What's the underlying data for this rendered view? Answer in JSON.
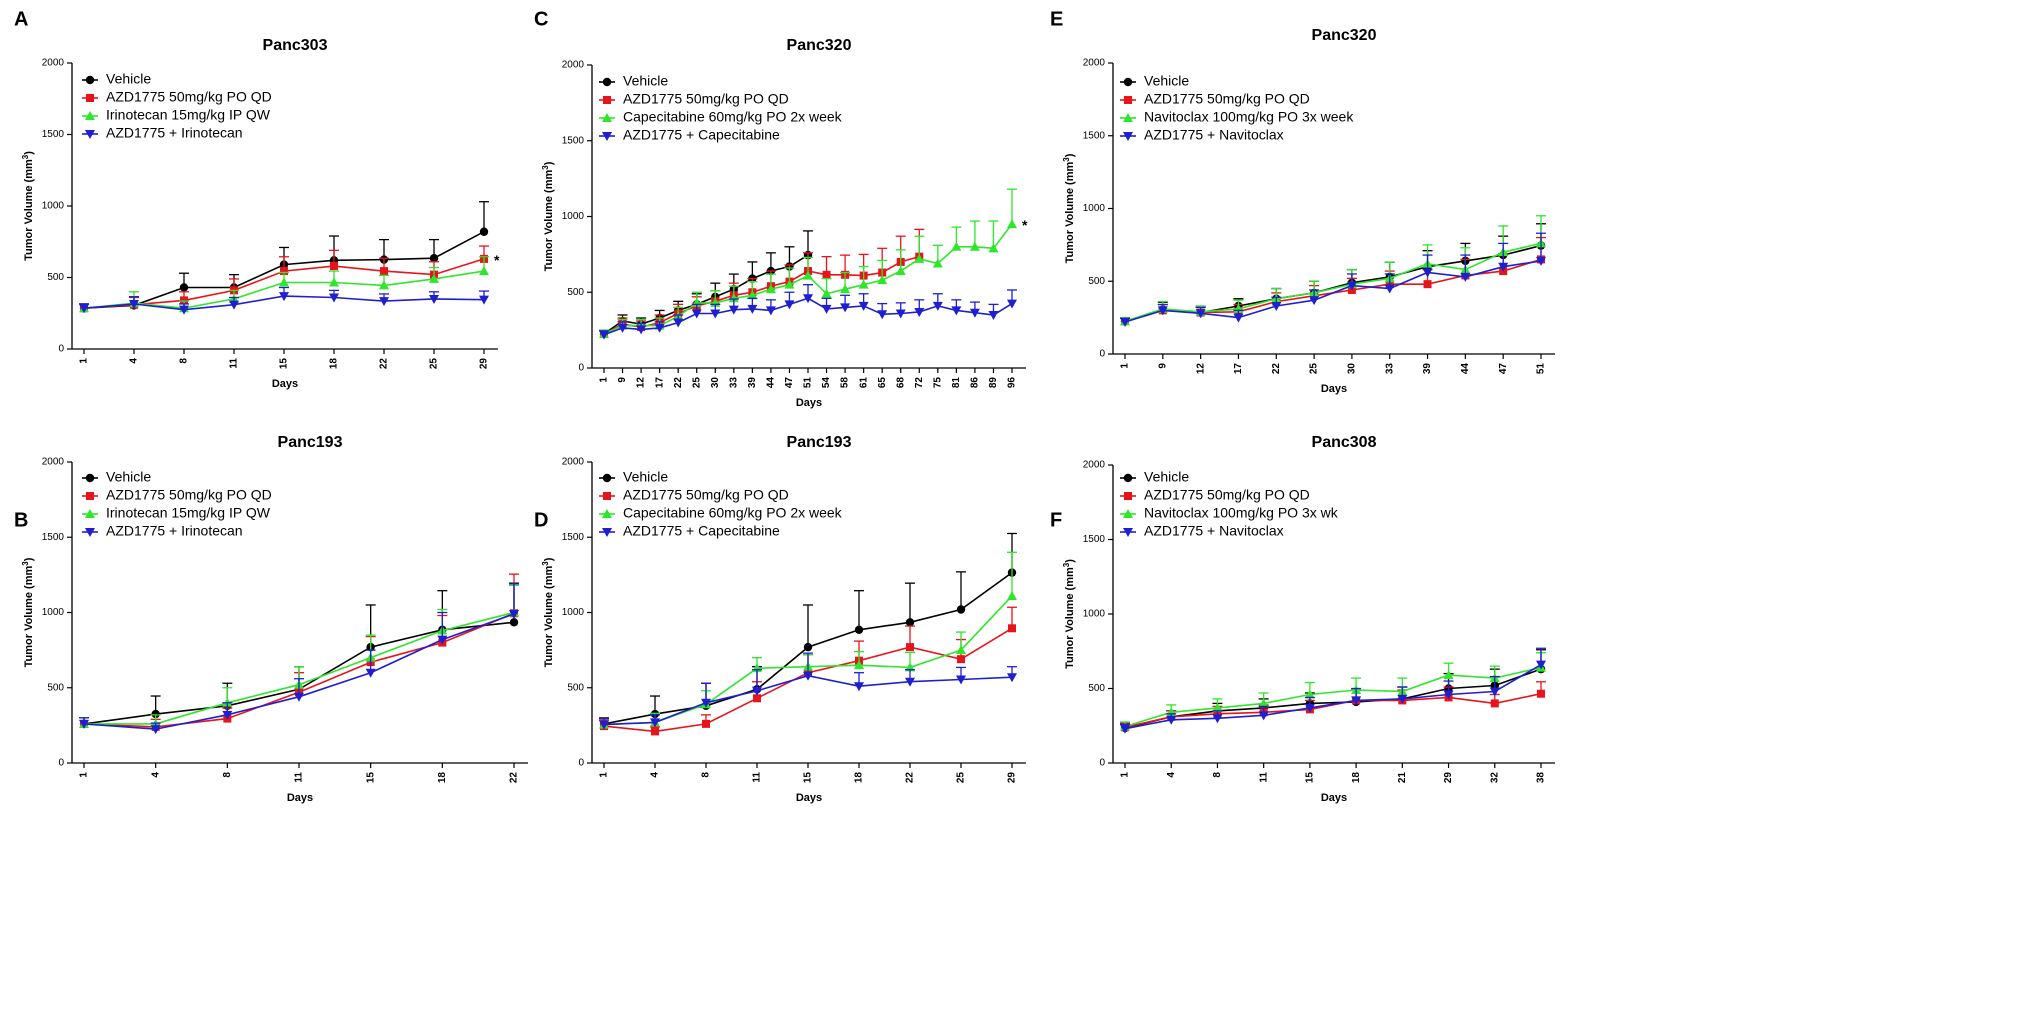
{
  "figure": {
    "colors": {
      "vehicle": "#000000",
      "azd": "#e8141b",
      "combo_drug": "#2ee62a",
      "combo": "#1f1fd0",
      "axis": "#000000"
    }
  },
  "chart_data": [
    {
      "panel_label": "A",
      "type": "line",
      "title": "Panc303",
      "xlabel": "Days",
      "ylabel": "Tumor Volume (mm",
      "ylabel_sup": "3",
      "ylabel_end": ")",
      "ylim": [
        0,
        2000
      ],
      "yticks": [
        "0",
        "500",
        "1000",
        "1500",
        "2000"
      ],
      "categories": [
        "1",
        "4",
        "8",
        "11",
        "15",
        "18",
        "22",
        "25",
        "29"
      ],
      "annotation": "*",
      "series": [
        {
          "name": "Vehicle",
          "color_key": "vehicle",
          "marker": "circle",
          "values": [
            285,
            305,
            430,
            430,
            590,
            620,
            625,
            635,
            820
          ],
          "errors": [
            30,
            60,
            100,
            90,
            120,
            170,
            140,
            130,
            210
          ]
        },
        {
          "name": "AZD1775 50mg/kg PO QD",
          "color_key": "azd",
          "marker": "square",
          "values": [
            285,
            310,
            340,
            410,
            545,
            580,
            545,
            520,
            630
          ],
          "errors": [
            30,
            50,
            60,
            80,
            100,
            110,
            90,
            90,
            90
          ]
        },
        {
          "name": "Irinotecan 15mg/kg IP QW",
          "color_key": "combo_drug",
          "marker": "triangle-up",
          "values": [
            285,
            320,
            285,
            350,
            465,
            465,
            445,
            490,
            545
          ],
          "errors": [
            30,
            80,
            50,
            60,
            70,
            80,
            70,
            80,
            100
          ]
        },
        {
          "name": "AZD1775 + Irinotecan",
          "color_key": "combo",
          "marker": "triangle-down",
          "values": [
            285,
            315,
            275,
            310,
            370,
            360,
            335,
            350,
            345
          ],
          "errors": [
            30,
            50,
            40,
            50,
            60,
            50,
            50,
            50,
            60
          ]
        }
      ]
    },
    {
      "panel_label": "C",
      "type": "line",
      "title": "Panc320",
      "xlabel": "Days",
      "ylabel": "Tumor Volume (mm",
      "ylabel_sup": "3",
      "ylabel_end": ")",
      "ylim": [
        0,
        2000
      ],
      "yticks": [
        "0",
        "500",
        "1000",
        "1500",
        "2000"
      ],
      "categories": [
        "1",
        "9",
        "12",
        "17",
        "22",
        "25",
        "30",
        "33",
        "39",
        "44",
        "47",
        "51",
        "54",
        "58",
        "61",
        "65",
        "68",
        "72",
        "75",
        "81",
        "86",
        "89",
        "96"
      ],
      "annotation": "*",
      "series": [
        {
          "name": "Vehicle",
          "color_key": "vehicle",
          "marker": "circle",
          "values": [
            225,
            310,
            290,
            330,
            380,
            420,
            470,
            520,
            590,
            640,
            670,
            745,
            null,
            null,
            null,
            null,
            null,
            null,
            null,
            null,
            null,
            null,
            null
          ],
          "errors": [
            25,
            40,
            40,
            50,
            60,
            70,
            90,
            100,
            110,
            120,
            130,
            160,
            0,
            0,
            0,
            0,
            0,
            0,
            0,
            0,
            0,
            0,
            0
          ]
        },
        {
          "name": "AZD1775 50mg/kg PO QD",
          "color_key": "azd",
          "marker": "square",
          "values": [
            225,
            290,
            270,
            300,
            360,
            410,
            440,
            480,
            500,
            540,
            570,
            640,
            615,
            615,
            610,
            630,
            700,
            735,
            null,
            null,
            null,
            null,
            null
          ],
          "errors": [
            25,
            40,
            40,
            50,
            60,
            60,
            70,
            80,
            90,
            100,
            110,
            120,
            120,
            130,
            140,
            160,
            170,
            180,
            0,
            0,
            0,
            0,
            0
          ]
        },
        {
          "name": "Capecitabine 60mg/kg PO 2x week",
          "color_key": "combo_drug",
          "marker": "triangle-up",
          "values": [
            225,
            280,
            280,
            280,
            340,
            430,
            430,
            460,
            480,
            520,
            550,
            610,
            490,
            520,
            550,
            580,
            640,
            720,
            690,
            800,
            800,
            790,
            950
          ],
          "errors": [
            25,
            40,
            40,
            50,
            60,
            70,
            80,
            80,
            90,
            100,
            110,
            120,
            100,
            110,
            120,
            130,
            140,
            150,
            120,
            130,
            170,
            180,
            230
          ]
        },
        {
          "name": "AZD1775 + Capecitabine",
          "color_key": "combo",
          "marker": "triangle-down",
          "values": [
            220,
            265,
            255,
            265,
            300,
            360,
            360,
            385,
            390,
            380,
            420,
            460,
            390,
            400,
            410,
            355,
            360,
            370,
            410,
            380,
            365,
            350,
            425
          ],
          "errors": [
            25,
            40,
            40,
            40,
            50,
            60,
            60,
            70,
            70,
            70,
            80,
            90,
            70,
            80,
            80,
            70,
            70,
            80,
            80,
            70,
            70,
            70,
            90
          ]
        }
      ]
    },
    {
      "panel_label": "E",
      "type": "line",
      "title": "Panc320",
      "xlabel": "Days",
      "ylabel": "Tumor Volume (mm",
      "ylabel_sup": "3",
      "ylabel_end": ")",
      "ylim": [
        0,
        2000
      ],
      "yticks": [
        "0",
        "500",
        "1000",
        "1500",
        "2000"
      ],
      "categories": [
        "1",
        "9",
        "12",
        "17",
        "22",
        "25",
        "30",
        "33",
        "39",
        "44",
        "47",
        "51"
      ],
      "annotation": "",
      "series": [
        {
          "name": "Vehicle",
          "color_key": "vehicle",
          "marker": "circle",
          "values": [
            225,
            305,
            285,
            330,
            380,
            420,
            490,
            530,
            600,
            640,
            680,
            745
          ],
          "errors": [
            25,
            50,
            40,
            50,
            70,
            80,
            90,
            100,
            110,
            120,
            130,
            150
          ]
        },
        {
          "name": "AZD1775 50mg/kg PO QD",
          "color_key": "azd",
          "marker": "square",
          "values": [
            225,
            300,
            285,
            290,
            360,
            400,
            440,
            480,
            480,
            540,
            570,
            650
          ],
          "errors": [
            25,
            40,
            40,
            50,
            60,
            70,
            80,
            90,
            100,
            110,
            120,
            150
          ]
        },
        {
          "name": "Navitoclax 100mg/kg PO 3x week",
          "color_key": "combo_drug",
          "marker": "triangle-up",
          "values": [
            225,
            310,
            290,
            310,
            380,
            420,
            480,
            520,
            620,
            580,
            700,
            760
          ],
          "errors": [
            25,
            50,
            40,
            60,
            70,
            80,
            100,
            110,
            130,
            150,
            180,
            190
          ]
        },
        {
          "name": "AZD1775 + Navitoclax",
          "color_key": "combo",
          "marker": "triangle-down",
          "values": [
            220,
            300,
            280,
            250,
            330,
            370,
            470,
            450,
            560,
            530,
            600,
            640
          ],
          "errors": [
            25,
            40,
            40,
            50,
            60,
            70,
            80,
            100,
            120,
            150,
            160,
            190
          ]
        }
      ]
    },
    {
      "panel_label": "B",
      "type": "line",
      "title": "Panc193",
      "xlabel": "Days",
      "ylabel": "Tumor Volume (mm",
      "ylabel_sup": "3",
      "ylabel_end": ")",
      "ylim": [
        0,
        2000
      ],
      "yticks": [
        "0",
        "500",
        "1000",
        "1500",
        "2000"
      ],
      "categories": [
        "1",
        "4",
        "8",
        "11",
        "15",
        "18",
        "22"
      ],
      "annotation": "",
      "series": [
        {
          "name": "Vehicle",
          "color_key": "vehicle",
          "marker": "circle",
          "values": [
            260,
            325,
            380,
            490,
            770,
            885,
            935
          ],
          "errors": [
            40,
            120,
            150,
            150,
            280,
            260,
            260
          ]
        },
        {
          "name": "AZD1775 50mg/kg PO QD",
          "color_key": "azd",
          "marker": "square",
          "values": [
            260,
            240,
            295,
            470,
            670,
            800,
            995
          ],
          "errors": [
            40,
            50,
            70,
            130,
            170,
            180,
            260
          ]
        },
        {
          "name": "Irinotecan 15mg/kg IP QW",
          "color_key": "combo_drug",
          "marker": "triangle-up",
          "values": [
            260,
            260,
            400,
            520,
            700,
            880,
            1000
          ],
          "errors": [
            40,
            60,
            100,
            120,
            150,
            140,
            180
          ]
        },
        {
          "name": "AZD1775 + Irinotecan",
          "color_key": "combo",
          "marker": "triangle-down",
          "values": [
            260,
            225,
            320,
            440,
            600,
            820,
            990
          ],
          "errors": [
            40,
            40,
            80,
            120,
            150,
            180,
            200
          ]
        }
      ]
    },
    {
      "panel_label": "D",
      "type": "line",
      "title": "Panc193",
      "xlabel": "Days",
      "ylabel": "Tumor Volume (mm",
      "ylabel_sup": "3",
      "ylabel_end": ")",
      "ylim": [
        0,
        2000
      ],
      "yticks": [
        "0",
        "500",
        "1000",
        "1500",
        "2000"
      ],
      "categories": [
        "1",
        "4",
        "8",
        "11",
        "15",
        "18",
        "22",
        "25",
        "29"
      ],
      "annotation": "",
      "series": [
        {
          "name": "Vehicle",
          "color_key": "vehicle",
          "marker": "circle",
          "values": [
            260,
            325,
            380,
            490,
            770,
            885,
            935,
            1020,
            1265
          ],
          "errors": [
            40,
            120,
            150,
            150,
            280,
            260,
            260,
            250,
            260
          ]
        },
        {
          "name": "AZD1775 50mg/kg PO QD",
          "color_key": "azd",
          "marker": "square",
          "values": [
            245,
            210,
            260,
            430,
            600,
            680,
            770,
            690,
            895
          ],
          "errors": [
            40,
            30,
            60,
            110,
            120,
            130,
            140,
            130,
            140
          ]
        },
        {
          "name": "Capecitabine 60mg/kg PO 2x week",
          "color_key": "combo_drug",
          "marker": "triangle-up",
          "values": [
            255,
            270,
            390,
            630,
            640,
            650,
            635,
            750,
            1110
          ],
          "errors": [
            40,
            60,
            90,
            70,
            80,
            90,
            100,
            120,
            290
          ]
        },
        {
          "name": "AZD1775 + Capecitabine",
          "color_key": "combo",
          "marker": "triangle-down",
          "values": [
            255,
            270,
            400,
            480,
            580,
            510,
            540,
            555,
            570
          ],
          "errors": [
            40,
            50,
            130,
            140,
            150,
            90,
            80,
            80,
            70
          ]
        }
      ]
    },
    {
      "panel_label": "F",
      "type": "line",
      "title": "Panc308",
      "xlabel": "Days",
      "ylabel": "Tumor Volume (mm",
      "ylabel_sup": "3",
      "ylabel_end": ")",
      "ylim": [
        0,
        2000
      ],
      "yticks": [
        "0",
        "500",
        "1000",
        "1500",
        "2000"
      ],
      "categories": [
        "1",
        "4",
        "8",
        "11",
        "15",
        "18",
        "21",
        "29",
        "32",
        "38"
      ],
      "annotation": "",
      "series": [
        {
          "name": "Vehicle",
          "color_key": "vehicle",
          "marker": "circle",
          "values": [
            235,
            310,
            350,
            370,
            400,
            410,
            430,
            500,
            520,
            630
          ],
          "errors": [
            30,
            40,
            50,
            60,
            70,
            80,
            80,
            100,
            110,
            130
          ]
        },
        {
          "name": "AZD1775 50mg/kg PO QD",
          "color_key": "azd",
          "marker": "square",
          "values": [
            240,
            310,
            330,
            340,
            360,
            420,
            420,
            440,
            400,
            465
          ],
          "errors": [
            30,
            40,
            50,
            50,
            60,
            70,
            70,
            70,
            60,
            80
          ]
        },
        {
          "name": "Navitoclax 100mg/kg PO 3x wk",
          "color_key": "combo_drug",
          "marker": "triangle-up",
          "values": [
            245,
            340,
            370,
            400,
            460,
            490,
            480,
            590,
            570,
            640
          ],
          "errors": [
            30,
            50,
            60,
            70,
            80,
            80,
            90,
            80,
            80,
            100
          ]
        },
        {
          "name": "AZD1775 + Navitoclax",
          "color_key": "combo",
          "marker": "triangle-down",
          "values": [
            230,
            290,
            300,
            320,
            370,
            420,
            430,
            460,
            480,
            660
          ],
          "errors": [
            30,
            40,
            50,
            60,
            70,
            80,
            80,
            90,
            100,
            110
          ]
        }
      ]
    }
  ]
}
